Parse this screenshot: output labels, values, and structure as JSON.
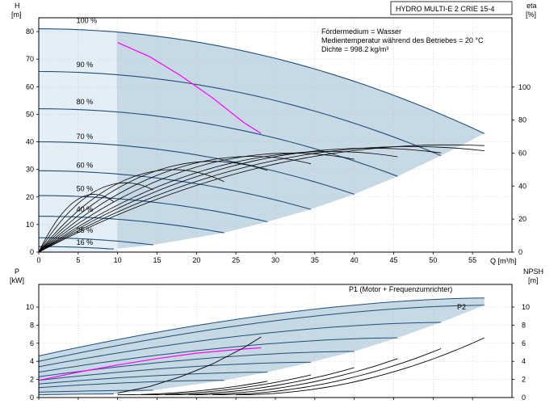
{
  "colors": {
    "band": "#c8d9e6",
    "band_edge": "#e3eef7",
    "curve": "#1f4f7a",
    "eff": "#000000",
    "system": "#ff00ff",
    "grid": "#bdbdbd"
  },
  "chart_data": [
    {
      "type": "line",
      "title": "HYDRO MULTI-E 2 CRIE 15-4",
      "info_lines": [
        "Fördermedium = Wasser",
        "Medientemperatur während des Betriebes = 20 °C",
        "Dichte = 998.2 kg/m³"
      ],
      "xlabel": "Q [m³/h]",
      "ylabel_left_line1": "H",
      "ylabel_left_line2": "[m]",
      "ylabel_right_line1": "eta",
      "ylabel_right_line2": "[%]",
      "xlim": [
        0,
        60
      ],
      "ylim": [
        0,
        85
      ],
      "y2lim": [
        0,
        142
      ],
      "xticks": [
        0,
        5,
        10,
        15,
        20,
        25,
        30,
        35,
        40,
        45,
        50,
        55
      ],
      "yticks": [
        0,
        10,
        20,
        30,
        40,
        50,
        60,
        70,
        80
      ],
      "y2ticks": [
        0,
        20,
        40,
        60,
        80,
        100
      ],
      "grid": true,
      "speed_labels": [
        {
          "label": "100 %",
          "q": 1.7,
          "h": 82.5
        },
        {
          "label": "90 %",
          "q": 1.7,
          "h": 66.5
        },
        {
          "label": "80 %",
          "q": 1.7,
          "h": 53
        },
        {
          "label": "70 %",
          "q": 1.7,
          "h": 40.5
        },
        {
          "label": "60 %",
          "q": 1.7,
          "h": 30
        },
        {
          "label": "50 %",
          "q": 1.7,
          "h": 21.5
        },
        {
          "label": "40 %",
          "q": 1.7,
          "h": 14
        },
        {
          "label": "25 %",
          "q": 1.7,
          "h": 6.5
        },
        {
          "label": "16 %",
          "q": 1.7,
          "h": 2
        }
      ],
      "head_curves": [
        {
          "name": "100 %",
          "h0": 81,
          "qmax": 56.5,
          "hend": 43
        },
        {
          "name": "90 %",
          "h0": 65.5,
          "qmax": 51,
          "hend": 35
        },
        {
          "name": "80 %",
          "h0": 52,
          "qmax": 45.5,
          "hend": 27.5
        },
        {
          "name": "70 %",
          "h0": 40,
          "qmax": 40,
          "hend": 21
        },
        {
          "name": "60 %",
          "h0": 29.5,
          "qmax": 34.5,
          "hend": 15.5
        },
        {
          "name": "50 %",
          "h0": 20.5,
          "qmax": 29,
          "hend": 11
        },
        {
          "name": "40 %",
          "h0": 13,
          "qmax": 23.5,
          "hend": 7
        },
        {
          "name": "25 %",
          "h0": 5.2,
          "qmax": 14.5,
          "hend": 2.6
        },
        {
          "name": "16 %",
          "h0": 2,
          "qmax": 9.5,
          "hend": 1.1
        }
      ],
      "efficiency_curves": [
        {
          "peak_q": 52,
          "peak_eta": 65,
          "qend": 56.5,
          "eta_end": 61
        },
        {
          "peak_q": 47,
          "peak_eta": 64,
          "qend": 56.5,
          "eta_end": 58
        },
        {
          "peak_q": 42,
          "peak_eta": 63,
          "qend": 51,
          "eta_end": 58
        },
        {
          "peak_q": 37,
          "peak_eta": 61,
          "qend": 45.5,
          "eta_end": 56
        },
        {
          "peak_q": 32,
          "peak_eta": 60,
          "qend": 40,
          "eta_end": 55
        },
        {
          "peak_q": 27,
          "peak_eta": 58,
          "qend": 34.5,
          "eta_end": 53
        },
        {
          "peak_q": 22,
          "peak_eta": 55,
          "qend": 29,
          "eta_end": 50
        },
        {
          "peak_q": 17,
          "peak_eta": 50,
          "qend": 23.5,
          "eta_end": 44
        },
        {
          "peak_q": 11,
          "peak_eta": 42,
          "qend": 14.5,
          "eta_end": 37
        },
        {
          "peak_q": 7,
          "peak_eta": 35,
          "qend": 9.5,
          "eta_end": 29
        }
      ],
      "system_curve": {
        "q": [
          10,
          14,
          18,
          22,
          26,
          28.2
        ],
        "h": [
          76,
          71,
          64,
          56,
          47,
          43
        ]
      }
    },
    {
      "type": "line",
      "xlabel": "",
      "ylabel_left_line1": "P",
      "ylabel_left_line2": "[kW]",
      "ylabel_right_line1": "NPSH",
      "ylabel_right_line2": "[m]",
      "xlim": [
        0,
        60
      ],
      "ylim": [
        0,
        12.5
      ],
      "y2lim": [
        0,
        12.5
      ],
      "yticks": [
        0,
        2,
        4,
        6,
        8,
        10
      ],
      "y2ticks": [
        0,
        2,
        4,
        6,
        8,
        10
      ],
      "grid": true,
      "p1_label": "P1 (Motor + Frequenzumrichter)",
      "p2_label": "P2",
      "power_curves": [
        {
          "p0": 4.6,
          "qmax": 56.5,
          "pend": 11.0
        },
        {
          "p0": 4.0,
          "qmax": 56.5,
          "pend": 10.2
        },
        {
          "p0": 3.4,
          "qmax": 51,
          "pend": 8.3
        },
        {
          "p0": 2.8,
          "qmax": 45.5,
          "pend": 6.6
        },
        {
          "p0": 2.3,
          "qmax": 40,
          "pend": 5.1
        },
        {
          "p0": 1.9,
          "qmax": 34.5,
          "pend": 3.9
        },
        {
          "p0": 1.5,
          "qmax": 29,
          "pend": 2.8
        },
        {
          "p0": 1.1,
          "qmax": 23.5,
          "pend": 1.9
        },
        {
          "p0": 0.6,
          "qmax": 14.5,
          "pend": 0.8
        },
        {
          "p0": 0.3,
          "qmax": 9.5,
          "pend": 0.4
        }
      ],
      "npsh_curves": [
        {
          "q0": 25,
          "qend": 56.5,
          "nend": 6.6
        },
        {
          "q0": 22,
          "qend": 51,
          "nend": 5.4
        },
        {
          "q0": 19,
          "qend": 45.5,
          "nend": 4.3
        },
        {
          "q0": 16,
          "qend": 40,
          "nend": 3.3
        },
        {
          "q0": 13,
          "qend": 34.5,
          "nend": 2.5
        },
        {
          "q0": 10,
          "qend": 29,
          "nend": 1.8
        }
      ],
      "system_power": {
        "q": [
          0,
          5,
          10,
          15,
          20,
          25,
          28.2
        ],
        "p": [
          1.9,
          2.8,
          3.6,
          4.3,
          4.9,
          5.3,
          5.5
        ]
      },
      "vertical_curve": {
        "q": [
          10,
          14,
          18,
          22,
          26,
          28.2
        ],
        "p": [
          0.5,
          1.2,
          2.3,
          3.7,
          5.5,
          6.7
        ]
      }
    }
  ]
}
